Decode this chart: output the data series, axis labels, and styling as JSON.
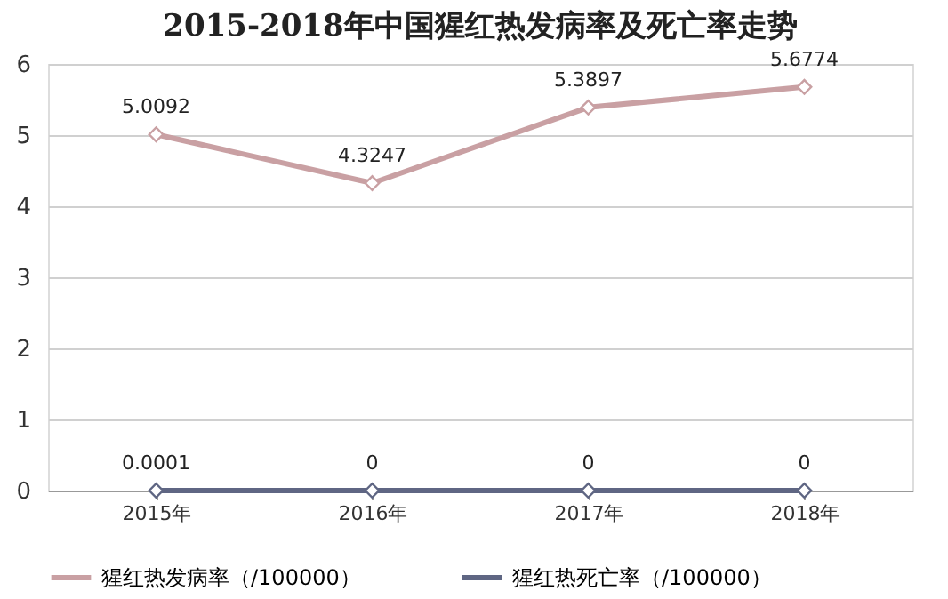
{
  "chart_data": {
    "type": "line",
    "title": "2015-2018年中国猩红热发病率及死亡率走势",
    "categories": [
      "2015年",
      "2016年",
      "2017年",
      "2018年"
    ],
    "series": [
      {
        "name": "猩红热发病率（/100000）",
        "color": "#c9a0a3",
        "values": [
          5.0092,
          4.3247,
          5.3897,
          5.6774
        ]
      },
      {
        "name": "猩红热死亡率（/100000）",
        "color": "#5f6683",
        "values": [
          0.0001,
          0,
          0,
          0
        ]
      }
    ],
    "ylim": [
      0,
      6
    ],
    "yticks": [
      0,
      1,
      2,
      3,
      4,
      5,
      6
    ],
    "grid": "y",
    "legend": "bottom",
    "marker": "diamond",
    "line_style": "solid",
    "data_labels": true
  }
}
